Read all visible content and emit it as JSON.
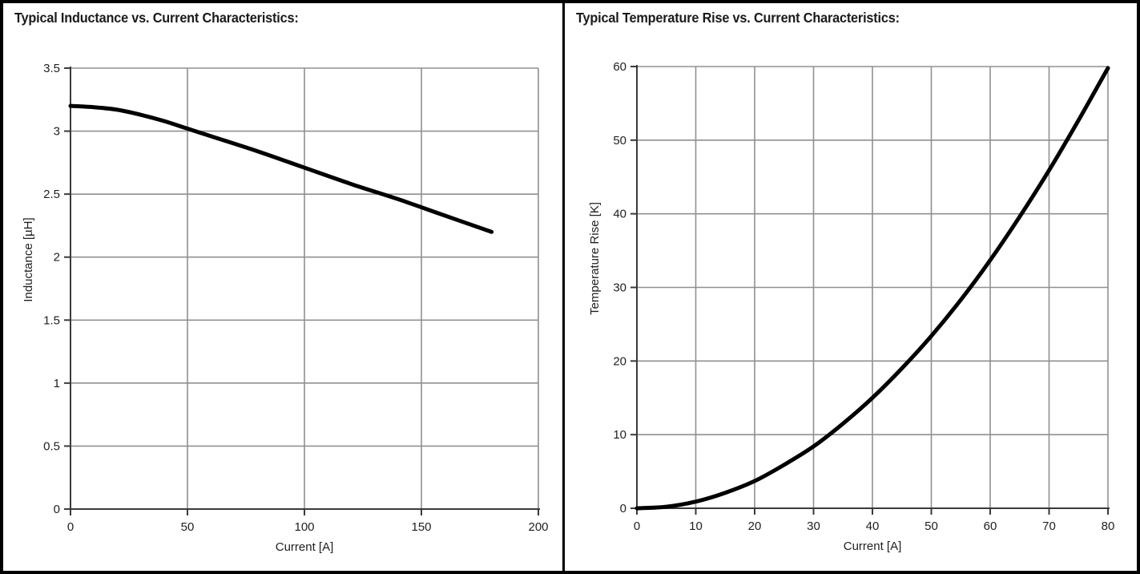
{
  "page": {
    "background": "#ffffff",
    "border_color": "#000000",
    "divider_color": "#000000",
    "grid_color": "#909090",
    "axis_color": "#3a3a3a",
    "text_color": "#1f1f1f"
  },
  "chart_data": [
    {
      "type": "line",
      "title": "Typical Inductance vs. Current Characteristics:",
      "xlabel": "Current [A]",
      "ylabel": "Inductance [µH]",
      "xlim": [
        0,
        200
      ],
      "ylim": [
        0,
        3.5
      ],
      "xticks": [
        "0",
        "50",
        "100",
        "150",
        "200"
      ],
      "yticks": [
        "0",
        "0.5",
        "1",
        "1.5",
        "2",
        "2.5",
        "3",
        "3.5"
      ],
      "grid": true,
      "legend": "none",
      "line_color": "#000000",
      "series": [
        {
          "name": "Inductance",
          "x": [
            0,
            10,
            20,
            30,
            40,
            50,
            60,
            80,
            100,
            120,
            140,
            160,
            180
          ],
          "y": [
            3.2,
            3.19,
            3.17,
            3.13,
            3.08,
            3.02,
            2.96,
            2.84,
            2.71,
            2.58,
            2.46,
            2.33,
            2.2
          ]
        }
      ]
    },
    {
      "type": "line",
      "title": "Typical Temperature Rise vs. Current Characteristics:",
      "xlabel": "Current [A]",
      "ylabel": "Temperature Rise [K]",
      "xlim": [
        0,
        80
      ],
      "ylim": [
        0,
        60
      ],
      "xticks": [
        "0",
        "10",
        "20",
        "30",
        "40",
        "50",
        "60",
        "70",
        "80"
      ],
      "yticks": [
        "0",
        "10",
        "20",
        "30",
        "40",
        "50",
        "60"
      ],
      "grid": true,
      "legend": "none",
      "line_color": "#000000",
      "series": [
        {
          "name": "Temperature Rise",
          "x": [
            0,
            5,
            10,
            15,
            20,
            25,
            30,
            35,
            40,
            45,
            50,
            55,
            60,
            65,
            70,
            75,
            80
          ],
          "y": [
            0,
            0.2,
            0.9,
            2.1,
            3.7,
            5.9,
            8.4,
            11.5,
            15.0,
            19.0,
            23.4,
            28.3,
            33.7,
            39.6,
            45.9,
            52.7,
            59.8
          ]
        }
      ]
    }
  ]
}
